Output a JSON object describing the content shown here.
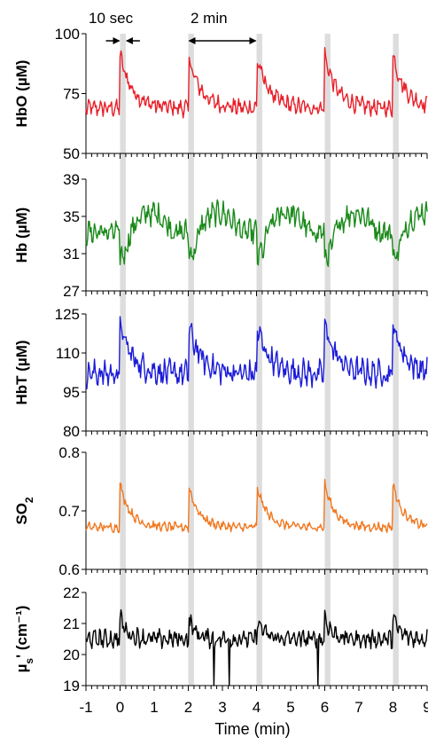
{
  "chart_data": {
    "type": "line",
    "xlabel": "Time (min)",
    "x_ticks": [
      "-1",
      "0",
      "1",
      "2",
      "3",
      "4",
      "5",
      "6",
      "7",
      "8",
      "9"
    ],
    "xlim": [
      -1,
      9
    ],
    "stimulus_times": [
      0,
      2,
      4,
      6,
      8
    ],
    "stimulus_duration_sec": 10,
    "grid": false,
    "legend": "none",
    "annotations": [
      {
        "text": "10 sec"
      },
      {
        "text": "2 min"
      }
    ],
    "panels": [
      {
        "id": "hbo",
        "ylabel_main": "HbO (µM)",
        "ylabel_sub": "",
        "ylabel_tail": "",
        "color": "#e8202a",
        "ylim": [
          50,
          100
        ],
        "y_ticks": [
          50,
          75,
          100
        ],
        "y_tick_labels": [
          "50",
          "75",
          "100"
        ],
        "baseline": 69,
        "noise": 3.5,
        "peak": 91,
        "decay": 0.35,
        "undershoot": 0
      },
      {
        "id": "hb",
        "ylabel_main": "Hb (µM)",
        "ylabel_sub": "",
        "ylabel_tail": "",
        "color": "#1a8a1a",
        "ylim": [
          27,
          39
        ],
        "y_ticks": [
          27,
          31,
          35,
          39
        ],
        "y_tick_labels": [
          "27",
          "31",
          "35",
          "39"
        ],
        "baseline": 33.3,
        "noise": 1.3,
        "peak": 30.5,
        "decay": 0.45,
        "undershoot": 2.5
      },
      {
        "id": "hbt",
        "ylabel_main": "HbT (µM)",
        "ylabel_sub": "",
        "ylabel_tail": "",
        "color": "#1c1cd8",
        "ylim": [
          80,
          125
        ],
        "y_ticks": [
          80,
          95,
          110,
          125
        ],
        "y_tick_labels": [
          "80",
          "95",
          "110",
          "125"
        ],
        "baseline": 102,
        "noise": 5,
        "peak": 121,
        "decay": 0.35,
        "undershoot": 0
      },
      {
        "id": "so2",
        "ylabel_main": "SO",
        "ylabel_sub": "2",
        "ylabel_tail": "",
        "color": "#f07820",
        "ylim": [
          0.6,
          0.8
        ],
        "y_ticks": [
          0.6,
          0.7,
          0.8
        ],
        "y_tick_labels": [
          "0.6",
          "0.7",
          "0.8"
        ],
        "baseline": 0.672,
        "noise": 0.008,
        "peak": 0.745,
        "decay": 0.3,
        "undershoot": 0
      },
      {
        "id": "mus",
        "ylabel_main": "µ",
        "ylabel_sub": "s",
        "ylabel_tail": "' (cm⁻¹)",
        "color": "#000000",
        "ylim": [
          19,
          22
        ],
        "y_ticks": [
          19,
          20,
          21,
          22
        ],
        "y_tick_labels": [
          "19",
          "20",
          "21",
          "22"
        ],
        "baseline": 20.5,
        "noise": 0.3,
        "peak": 21.2,
        "decay": 0.2,
        "undershoot": 0,
        "dropouts": [
          2.75,
          3.2,
          5.8
        ]
      }
    ]
  }
}
